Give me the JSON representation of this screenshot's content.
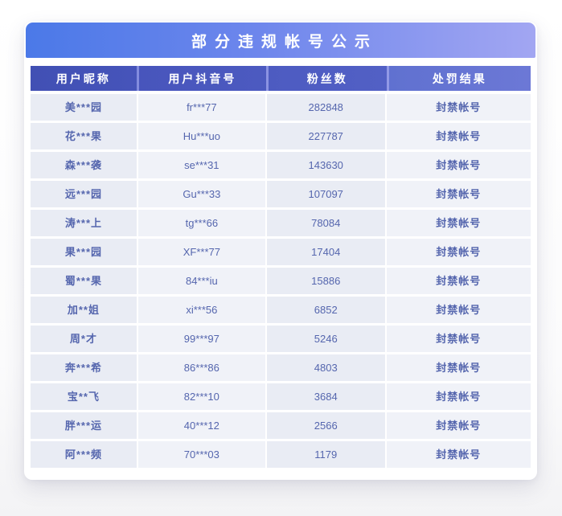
{
  "title": "部分违规帐号公示",
  "table": {
    "columns": [
      {
        "label": "用户昵称"
      },
      {
        "label": "用户抖音号"
      },
      {
        "label": "粉丝数"
      },
      {
        "label": "处罚结果"
      }
    ],
    "rows": [
      [
        "美***园",
        "fr***77",
        "282848",
        "封禁帐号"
      ],
      [
        "花***果",
        "Hu***uo",
        "227787",
        "封禁帐号"
      ],
      [
        "森***袭",
        "se***31",
        "143630",
        "封禁帐号"
      ],
      [
        "远***园",
        "Gu***33",
        "107097",
        "封禁帐号"
      ],
      [
        "涛***上",
        "tg***66",
        "78084",
        "封禁帐号"
      ],
      [
        "果***园",
        "XF***77",
        "17404",
        "封禁帐号"
      ],
      [
        "蜀***果",
        "84***iu",
        "15886",
        "封禁帐号"
      ],
      [
        "加**姐",
        "xi***56",
        "6852",
        "封禁帐号"
      ],
      [
        "周*才",
        "99***97",
        "5246",
        "封禁帐号"
      ],
      [
        "奔***希",
        "86***86",
        "4803",
        "封禁帐号"
      ],
      [
        "宝**飞",
        "82***10",
        "3684",
        "封禁帐号"
      ],
      [
        "胖***运",
        "40***12",
        "2566",
        "封禁帐号"
      ],
      [
        "阿***频",
        "70***03",
        "1179",
        "封禁帐号"
      ]
    ]
  },
  "colors": {
    "banner_gradient_start": "#4b79e8",
    "banner_gradient_end": "#a2a6f2",
    "header_cell_dark": "#4150b4",
    "header_cell_light": "#6c78d6",
    "header_gap_band": "#7d87dc",
    "row_bg_dark": "#e9ecf4",
    "row_bg_light": "#f0f2f8",
    "row_text": "#5566ae",
    "header_text": "#ffffff"
  }
}
